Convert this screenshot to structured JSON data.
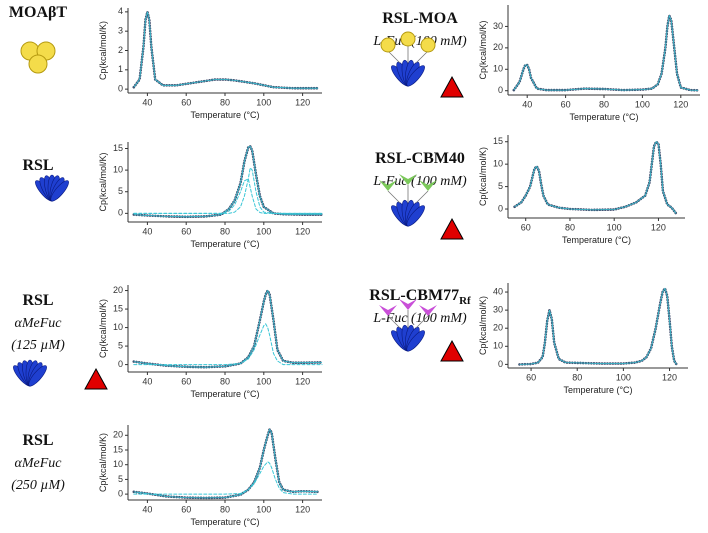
{
  "chart_data": [
    {
      "type": "line",
      "title": "MOAβT",
      "y_label": "Cp(kcal/mol/K)",
      "x_label": "Temperature (°C)",
      "x": [
        33,
        36,
        38,
        39,
        40,
        41,
        42,
        44,
        48,
        55,
        65,
        75,
        80,
        85,
        95,
        105,
        115,
        125,
        128
      ],
      "series": [
        {
          "color": "#3d4a6b",
          "line_style": "dotted",
          "values": [
            0.1,
            0.5,
            2.2,
            3.6,
            4,
            3.6,
            2.2,
            0.5,
            0.2,
            0.2,
            0.35,
            0.5,
            0.5,
            0.45,
            0.3,
            0.1,
            0.05,
            0.05,
            0.05
          ]
        }
      ],
      "xlim": [
        30,
        130
      ],
      "xticks": [
        40,
        60,
        80,
        100,
        120
      ],
      "ylim": [
        -0.2,
        4.2
      ],
      "yticks": [
        0,
        1,
        2,
        3,
        4
      ]
    },
    {
      "type": "line",
      "title": "RSL",
      "y_label": "Cp(kcal/mol/K)",
      "x_label": "Temperature (°C)",
      "x": [
        33,
        40,
        50,
        60,
        70,
        78,
        82,
        85,
        88,
        90,
        92,
        93,
        94,
        96,
        98,
        100,
        105,
        110,
        120,
        130
      ],
      "series": [
        {
          "color": "#3d4a6b",
          "line_style": "dotted",
          "values": [
            -0.3,
            -0.5,
            -0.7,
            -0.8,
            -0.7,
            -0.3,
            1,
            3,
            7,
            12,
            15.3,
            15.5,
            14.5,
            9,
            4,
            1.5,
            0,
            -0.2,
            -0.3,
            -0.3
          ]
        },
        {
          "color": "#39c6d6",
          "line_style": "dashed",
          "values": [
            0,
            0,
            0,
            0,
            0,
            0,
            0.5,
            2,
            5,
            7.5,
            8,
            6,
            4,
            1,
            0.2,
            0,
            0,
            0,
            0,
            0
          ]
        },
        {
          "color": "#39c6d6",
          "line_style": "dashed",
          "values": [
            0,
            0,
            0,
            0,
            0,
            0,
            0,
            0.3,
            1.5,
            4,
            8,
            10.5,
            10,
            5,
            1.5,
            0.3,
            0,
            0,
            0,
            0
          ]
        }
      ],
      "xlim": [
        30,
        130
      ],
      "xticks": [
        40,
        60,
        80,
        100,
        120
      ],
      "ylim": [
        -2,
        16.5
      ],
      "yticks": [
        0,
        5,
        10,
        15
      ]
    },
    {
      "type": "line",
      "title": "RSL",
      "subtitle": [
        "αMeFuc",
        "(125 µM)"
      ],
      "y_label": "Cp(kcal/mol/K)",
      "x_label": "Temperature (°C)",
      "x": [
        33,
        40,
        50,
        60,
        70,
        80,
        88,
        92,
        95,
        98,
        100,
        101,
        102,
        103,
        105,
        107,
        110,
        115,
        120,
        130
      ],
      "series": [
        {
          "color": "#3d4a6b",
          "line_style": "dotted",
          "values": [
            0.8,
            0.3,
            -0.3,
            -0.6,
            -0.7,
            -0.5,
            0.3,
            2,
            5,
            12,
            17,
            19,
            20,
            19,
            12,
            4,
            1,
            0.5,
            0.5,
            0.6
          ]
        },
        {
          "color": "#39c6d6",
          "line_style": "dashed",
          "values": [
            0,
            0,
            0,
            0,
            0,
            0,
            0.3,
            1.5,
            4,
            8,
            10.5,
            11,
            10,
            8,
            3,
            1,
            0,
            0,
            0,
            0
          ]
        }
      ],
      "xlim": [
        30,
        130
      ],
      "xticks": [
        40,
        60,
        80,
        100,
        120
      ],
      "ylim": [
        -2,
        21.5
      ],
      "yticks": [
        0,
        5,
        10,
        15,
        20
      ]
    },
    {
      "type": "line",
      "title": "RSL",
      "subtitle": [
        "αMeFuc",
        "(250 µM)"
      ],
      "y_label": "Cp(kcal/mol/K)",
      "x_label": "Temperature (°C)",
      "x": [
        33,
        40,
        50,
        60,
        70,
        80,
        88,
        92,
        95,
        98,
        100,
        102,
        103,
        104,
        106,
        108,
        110,
        115,
        120,
        128
      ],
      "series": [
        {
          "color": "#3d4a6b",
          "line_style": "dotted",
          "values": [
            0.8,
            0.2,
            -0.8,
            -1.2,
            -1.3,
            -1.2,
            -0.2,
            1.5,
            4,
            9,
            15,
            20,
            22,
            21,
            12,
            4,
            1.5,
            0.8,
            1,
            0.8
          ]
        },
        {
          "color": "#39c6d6",
          "line_style": "dashed",
          "values": [
            0,
            0,
            0,
            0,
            0,
            0,
            0.2,
            1.5,
            3.5,
            7,
            9.5,
            11,
            10.5,
            9,
            5,
            2,
            0.5,
            0,
            0,
            0
          ]
        }
      ],
      "xlim": [
        30,
        130
      ],
      "xticks": [
        40,
        60,
        80,
        100,
        120
      ],
      "ylim": [
        -2,
        23.5
      ],
      "yticks": [
        0,
        5,
        10,
        15,
        20
      ]
    },
    {
      "type": "line",
      "title": "RSL-MOA",
      "subtitle": "L-Fuc (100 mM)",
      "y_label": "Cp(kcal/mol/K)",
      "x_label": "Temperature (°C)",
      "x": [
        33,
        36,
        38,
        39,
        40,
        41,
        42,
        45,
        50,
        60,
        70,
        80,
        90,
        100,
        105,
        108,
        110,
        112,
        113,
        114,
        115,
        116,
        118,
        120,
        125,
        129
      ],
      "series": [
        {
          "color": "#3d4a6b",
          "line_style": "dotted",
          "values": [
            0.3,
            4,
            10,
            12,
            12,
            10,
            6,
            1,
            0.3,
            0.3,
            1,
            0.8,
            0.3,
            0.5,
            1,
            3,
            8,
            20,
            30,
            35,
            33,
            25,
            8,
            1.5,
            0.3,
            0.2
          ]
        }
      ],
      "xlim": [
        30,
        130
      ],
      "xticks": [
        40,
        60,
        80,
        100,
        120
      ],
      "ylim": [
        -2,
        40
      ],
      "yticks": [
        0,
        10,
        20,
        30
      ]
    },
    {
      "type": "line",
      "title": "RSL-CBM40",
      "subtitle": "L-Fuc (100 mM)",
      "y_label": "Cp(kcal/mol/K)",
      "x_label": "Temperature (°C)",
      "x": [
        55,
        58,
        60,
        62,
        63,
        64,
        65,
        66,
        67,
        68,
        70,
        75,
        80,
        90,
        100,
        105,
        110,
        114,
        116,
        117,
        118,
        119,
        120,
        121,
        122,
        124,
        126,
        128
      ],
      "series": [
        {
          "color": "#3d4a6b",
          "line_style": "dotted",
          "values": [
            0.5,
            1.5,
            3,
            5,
            7,
            9,
            9.5,
            8.5,
            5.5,
            3,
            1,
            0.3,
            0,
            -0.2,
            -0.1,
            0.5,
            1.5,
            3,
            6,
            10,
            14,
            15,
            14.5,
            10,
            4,
            1,
            0.3,
            -1
          ]
        }
      ],
      "xlim": [
        52,
        132
      ],
      "xticks": [
        60,
        80,
        100,
        120
      ],
      "ylim": [
        -2,
        16.5
      ],
      "yticks": [
        0,
        5,
        10,
        15
      ]
    },
    {
      "type": "line",
      "title": "RSL-CBM77",
      "title_subscript": "Rf",
      "subtitle": "L-Fuc (100 mM)",
      "y_label": "Cp(kcal/mol/K)",
      "x_label": "Temperature (°C)",
      "x": [
        55,
        60,
        63,
        65,
        66,
        67,
        68,
        69,
        70,
        72,
        75,
        80,
        90,
        100,
        105,
        108,
        110,
        112,
        114,
        116,
        117,
        118,
        119,
        120,
        121,
        122,
        123
      ],
      "series": [
        {
          "color": "#3d4a6b",
          "line_style": "dotted",
          "values": [
            0,
            0.2,
            1,
            4,
            12,
            24,
            30,
            25,
            12,
            3,
            1,
            0.8,
            0.5,
            0.5,
            1,
            2,
            4,
            9,
            20,
            34,
            40,
            42,
            38,
            25,
            10,
            2,
            0
          ]
        }
      ],
      "xlim": [
        50,
        128
      ],
      "xticks": [
        60,
        80,
        100,
        120
      ],
      "ylim": [
        -2,
        45
      ],
      "yticks": [
        0,
        10,
        20,
        30,
        40
      ]
    }
  ]
}
